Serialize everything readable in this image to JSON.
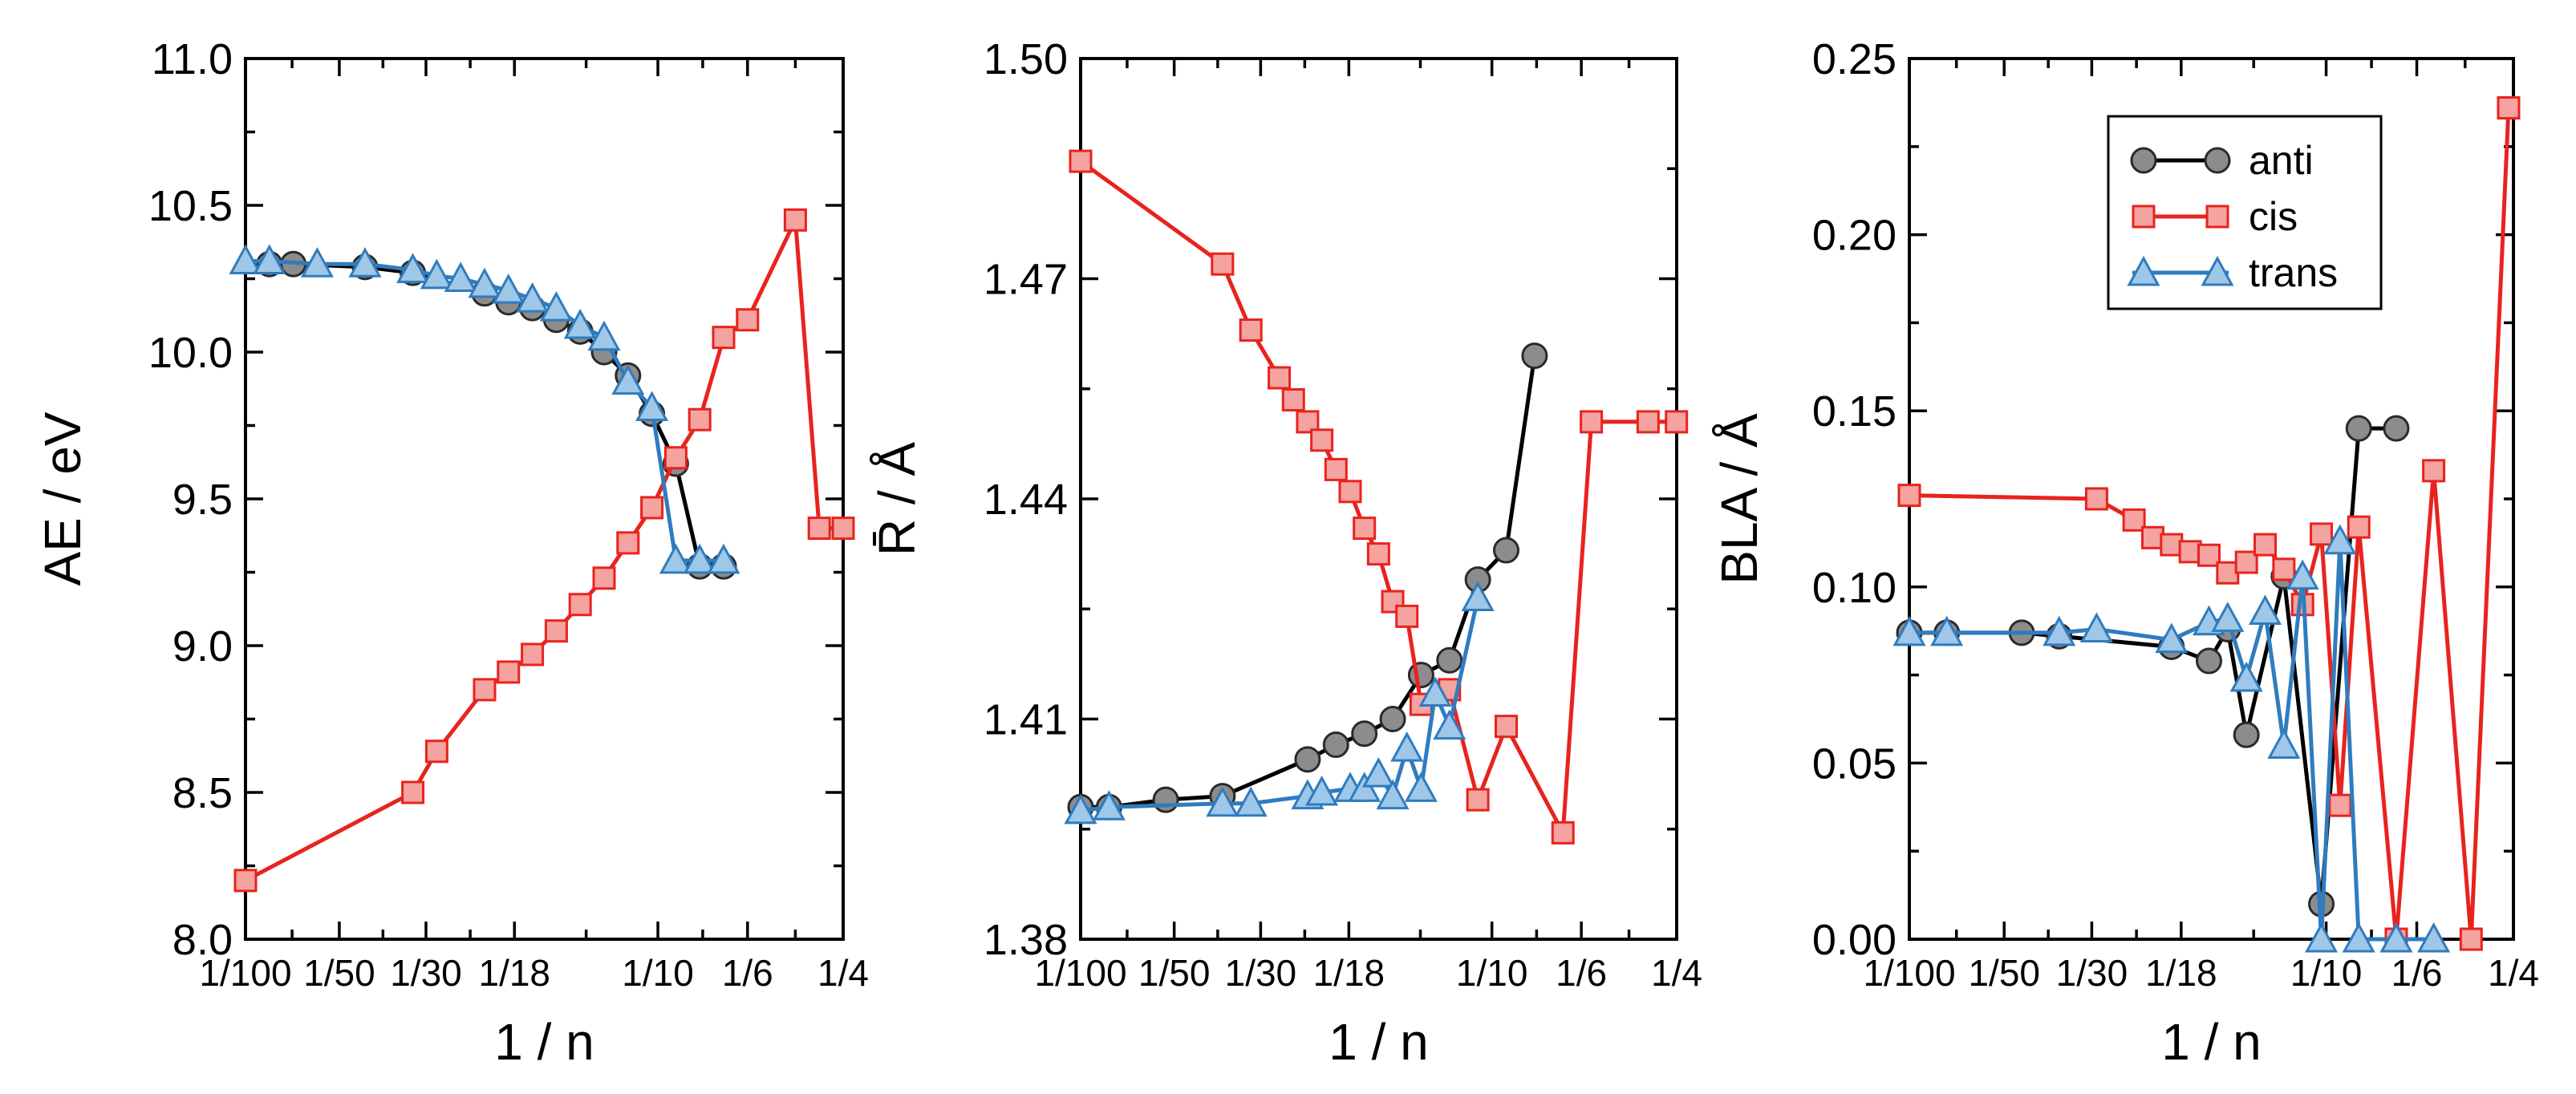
{
  "colors": {
    "anti": {
      "line": "#000000",
      "fill": "#8c8c8c",
      "edge": "#2a2a2a"
    },
    "cis": {
      "line": "#e8231e",
      "fill": "#f4a3a0",
      "edge": "#e8231e"
    },
    "trans": {
      "line": "#2f7cbf",
      "fill": "#9ec7e8",
      "edge": "#2f7cbf"
    }
  },
  "legend": {
    "entries": [
      "anti",
      "cis",
      "trans"
    ],
    "panel": 2
  },
  "chart_data": [
    {
      "type": "line",
      "xlabel": "1 / n",
      "ylabel": "AE / eV",
      "xlim": [
        0.01,
        0.25
      ],
      "x_tick_values": [
        0.01,
        0.02,
        0.0333,
        0.0556,
        0.1,
        0.1667,
        0.25
      ],
      "xticks": [
        "1/100",
        "1/50",
        "1/30",
        "1/18",
        "1/10",
        "1/6",
        "1/4"
      ],
      "ylim": [
        8.0,
        11.0
      ],
      "yticks": [
        "8.0",
        "8.5",
        "9.0",
        "9.5",
        "10.0",
        "10.5",
        "11.0"
      ],
      "series": [
        {
          "name": "anti",
          "marker": "circle",
          "x": [
            1,
            2,
            5,
            7,
            10,
            11,
            12,
            13,
            14,
            15,
            16,
            17,
            18,
            19,
            20
          ],
          "y": [
            10.3,
            10.3,
            10.29,
            10.27,
            10.2,
            10.17,
            10.15,
            10.11,
            10.07,
            10.0,
            9.92,
            9.79,
            9.62,
            9.27,
            9.27
          ],
          "xs": "grid"
        },
        {
          "name": "cis",
          "marker": "square",
          "x": [
            0,
            7,
            8,
            10,
            11,
            12,
            13,
            14,
            15,
            16,
            17,
            18,
            19,
            20,
            21,
            23,
            24,
            25
          ],
          "y": [
            8.2,
            8.5,
            8.64,
            8.85,
            8.91,
            8.97,
            9.05,
            9.14,
            9.23,
            9.35,
            9.47,
            9.64,
            9.77,
            10.05,
            10.11,
            10.45,
            9.4,
            9.4
          ],
          "xs": "grid"
        },
        {
          "name": "trans",
          "marker": "triangle",
          "x": [
            0,
            1,
            3,
            5,
            7,
            8,
            9,
            10,
            11,
            12,
            13,
            14,
            15,
            16,
            17,
            18,
            19,
            20
          ],
          "y": [
            10.31,
            10.31,
            10.3,
            10.3,
            10.28,
            10.26,
            10.25,
            10.23,
            10.21,
            10.18,
            10.15,
            10.09,
            10.05,
            9.9,
            9.81,
            9.29,
            9.29,
            9.29
          ],
          "xs": "grid"
        }
      ]
    },
    {
      "type": "line",
      "xlabel": "1 / n",
      "ylabel": "R̄ / Å",
      "xlim": [
        0.01,
        0.25
      ],
      "x_tick_values": [
        0.01,
        0.02,
        0.0333,
        0.0556,
        0.1,
        0.1667,
        0.25
      ],
      "xticks": [
        "1/100",
        "1/50",
        "1/30",
        "1/18",
        "1/10",
        "1/6",
        "1/4"
      ],
      "ylim": [
        1.38,
        1.5
      ],
      "yticks": [
        "1.38",
        "1.41",
        "1.44",
        "1.47",
        "1.50"
      ],
      "series": [
        {
          "name": "anti",
          "marker": "circle",
          "x": [
            0,
            1,
            3,
            5,
            8,
            9,
            10,
            11,
            12,
            13,
            14,
            15,
            16
          ],
          "y": [
            1.398,
            1.398,
            1.399,
            1.3995,
            1.4045,
            1.4065,
            1.408,
            1.41,
            1.416,
            1.418,
            1.429,
            1.433,
            1.4595
          ]
        },
        {
          "name": "cis",
          "marker": "square",
          "x": [
            0,
            5,
            6,
            7,
            7.5,
            8,
            8.5,
            9,
            9.5,
            10,
            10.5,
            11,
            11.5,
            12,
            13,
            14,
            15,
            17,
            18,
            20,
            21
          ],
          "y": [
            1.486,
            1.472,
            1.463,
            1.4565,
            1.4535,
            1.4505,
            1.448,
            1.444,
            1.441,
            1.436,
            1.4325,
            1.426,
            1.424,
            1.412,
            1.414,
            1.399,
            1.409,
            1.3945,
            1.4505,
            1.4505,
            1.4505
          ]
        },
        {
          "name": "trans",
          "marker": "triangle",
          "x": [
            0,
            1,
            5,
            6,
            8,
            8.5,
            9.5,
            10,
            10.5,
            11,
            11.5,
            12,
            12.5,
            13,
            14
          ],
          "y": [
            1.3975,
            1.398,
            1.3985,
            1.3985,
            1.3995,
            1.4,
            1.4005,
            1.4005,
            1.4025,
            1.3995,
            1.406,
            1.4005,
            1.4135,
            1.409,
            1.4265
          ]
        }
      ]
    },
    {
      "type": "line",
      "xlabel": "1 / n",
      "ylabel": "BLA / Å",
      "xlim": [
        0.01,
        0.25
      ],
      "x_tick_values": [
        0.01,
        0.02,
        0.0333,
        0.0556,
        0.1,
        0.1667,
        0.25
      ],
      "xticks": [
        "1/100",
        "1/50",
        "1/30",
        "1/18",
        "1/10",
        "1/6",
        "1/4"
      ],
      "ylim": [
        0.0,
        0.25
      ],
      "yticks": [
        "0.00",
        "0.05",
        "0.10",
        "0.15",
        "0.20",
        "0.25"
      ],
      "series": [
        {
          "name": "anti",
          "marker": "circle",
          "x": [
            0,
            1,
            3,
            4,
            7,
            8,
            8.5,
            9,
            10,
            11,
            12,
            13
          ],
          "y": [
            0.087,
            0.087,
            0.087,
            0.086,
            0.083,
            0.079,
            0.088,
            0.058,
            0.103,
            0.01,
            0.145,
            0.145
          ]
        },
        {
          "name": "cis",
          "marker": "square",
          "x": [
            0,
            5,
            6,
            6.5,
            7,
            7.5,
            8,
            8.5,
            9,
            9.5,
            10,
            10.5,
            11,
            11.5,
            12,
            13,
            14,
            15,
            16
          ],
          "y": [
            0.126,
            0.125,
            0.119,
            0.114,
            0.112,
            0.11,
            0.109,
            0.104,
            0.107,
            0.112,
            0.105,
            0.095,
            0.115,
            0.038,
            0.117,
            0.0,
            0.133,
            0.0,
            0.236
          ]
        },
        {
          "name": "trans",
          "marker": "triangle",
          "x": [
            0,
            1,
            4,
            5,
            7,
            8,
            8.5,
            9,
            9.5,
            10,
            10.5,
            11,
            11.5,
            12,
            13,
            14
          ],
          "y": [
            0.087,
            0.087,
            0.087,
            0.088,
            0.085,
            0.09,
            0.091,
            0.074,
            0.093,
            0.055,
            0.103,
            0.0,
            0.113,
            0.0,
            0.0,
            0.0
          ]
        }
      ]
    }
  ]
}
